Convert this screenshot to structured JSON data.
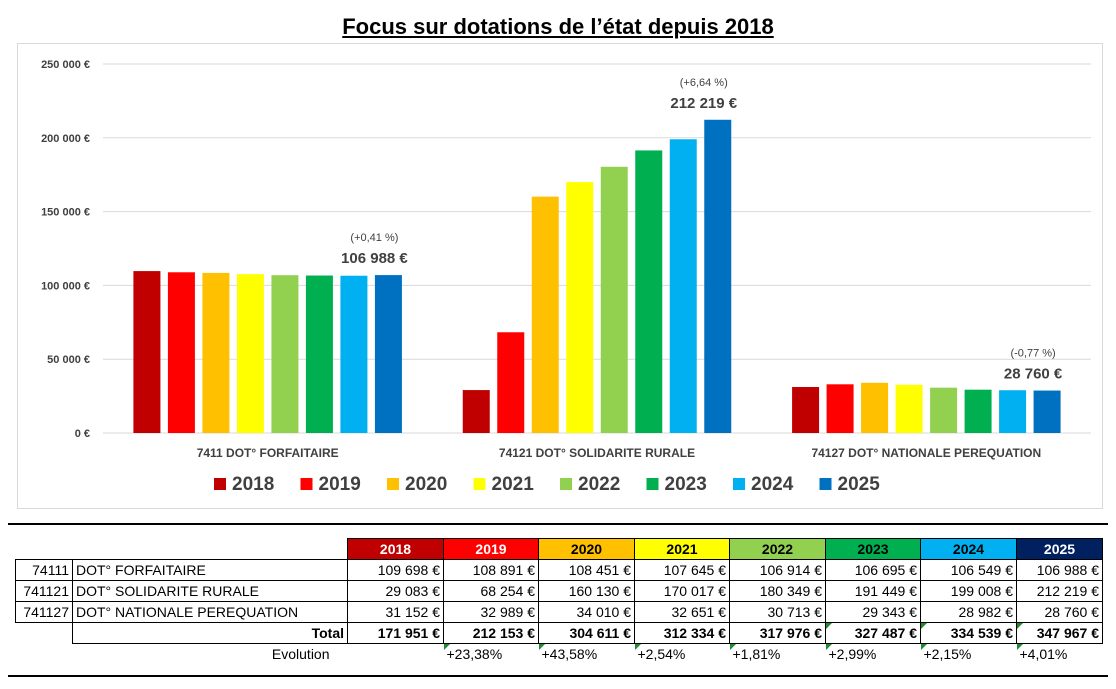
{
  "chart_data": {
    "type": "bar",
    "title": "Focus sur dotations de l’état depuis 2018",
    "categories": [
      "7411 DOT° FORFAITAIRE",
      "74121 DOT° SOLIDARITE RURALE",
      "74127 DOT° NATIONALE PEREQUATION"
    ],
    "series": [
      {
        "name": "2018",
        "color": "#c00000",
        "values": [
          109698,
          29083,
          31152
        ]
      },
      {
        "name": "2019",
        "color": "#ff0000",
        "values": [
          108891,
          68254,
          32989
        ]
      },
      {
        "name": "2020",
        "color": "#ffc000",
        "values": [
          108451,
          160130,
          34010
        ]
      },
      {
        "name": "2021",
        "color": "#ffff00",
        "values": [
          107645,
          170017,
          32651
        ]
      },
      {
        "name": "2022",
        "color": "#92d050",
        "values": [
          106914,
          180349,
          30713
        ]
      },
      {
        "name": "2023",
        "color": "#00b050",
        "values": [
          106695,
          191449,
          29343
        ]
      },
      {
        "name": "2024",
        "color": "#00b0f0",
        "values": [
          106549,
          199008,
          28982
        ]
      },
      {
        "name": "2025",
        "color": "#0070c0",
        "values": [
          106988,
          212219,
          28760
        ]
      }
    ],
    "ylim": [
      0,
      250000
    ],
    "yticks": [
      0,
      50000,
      100000,
      150000,
      200000,
      250000
    ],
    "ytick_labels": [
      "0 €",
      "50 000 €",
      "100 000 €",
      "150 000 €",
      "200 000 €",
      "250 000 €"
    ],
    "grid": true,
    "legend_position": "bottom",
    "annotations": [
      {
        "category_index": 0,
        "pct": "(+0,41 %)",
        "value_label": "106 988 €"
      },
      {
        "category_index": 1,
        "pct": "(+6,64 %)",
        "value_label": "212 219 €"
      },
      {
        "category_index": 2,
        "pct": "(-0,77 %)",
        "value_label": "28 760 €"
      }
    ]
  },
  "table": {
    "years": [
      {
        "label": "2018",
        "bg": "#c00000",
        "fg": "#ffffff"
      },
      {
        "label": "2019",
        "bg": "#ff0000",
        "fg": "#ffffff"
      },
      {
        "label": "2020",
        "bg": "#ffc000",
        "fg": "#000000"
      },
      {
        "label": "2021",
        "bg": "#ffff00",
        "fg": "#000000"
      },
      {
        "label": "2022",
        "bg": "#92d050",
        "fg": "#000000"
      },
      {
        "label": "2023",
        "bg": "#00b050",
        "fg": "#000000"
      },
      {
        "label": "2024",
        "bg": "#00b0f0",
        "fg": "#000000"
      },
      {
        "label": "2025",
        "bg": "#002060",
        "fg": "#ffffff"
      }
    ],
    "rows": [
      {
        "code": "74111",
        "label": "DOT° FORFAITAIRE",
        "values": [
          "109 698 €",
          "108 891 €",
          "108 451 €",
          "107 645 €",
          "106 914 €",
          "106 695 €",
          "106 549 €",
          "106 988 €"
        ]
      },
      {
        "code": "741121",
        "label": "DOT° SOLIDARITE RURALE",
        "values": [
          "29 083 €",
          "68 254 €",
          "160 130 €",
          "170 017 €",
          "180 349 €",
          "191 449 €",
          "199 008 €",
          "212 219 €"
        ]
      },
      {
        "code": "741127",
        "label": "DOT° NATIONALE PEREQUATION",
        "values": [
          "31 152 €",
          "32 989 €",
          "34 010 €",
          "32 651 €",
          "30 713 €",
          "29 343 €",
          "28 982 €",
          "28 760 €"
        ]
      }
    ],
    "total_label": "Total",
    "totals": [
      "171 951 €",
      "212 153 €",
      "304 611 €",
      "312 334 €",
      "317 976 €",
      "327 487 €",
      "334 539 €",
      "347 967 €"
    ],
    "evolution_label": "Evolution",
    "evolution": [
      "",
      "+23,38%",
      "+43,58%",
      "+2,54%",
      "+1,81%",
      "+2,99%",
      "+2,15%",
      "+4,01%"
    ]
  }
}
